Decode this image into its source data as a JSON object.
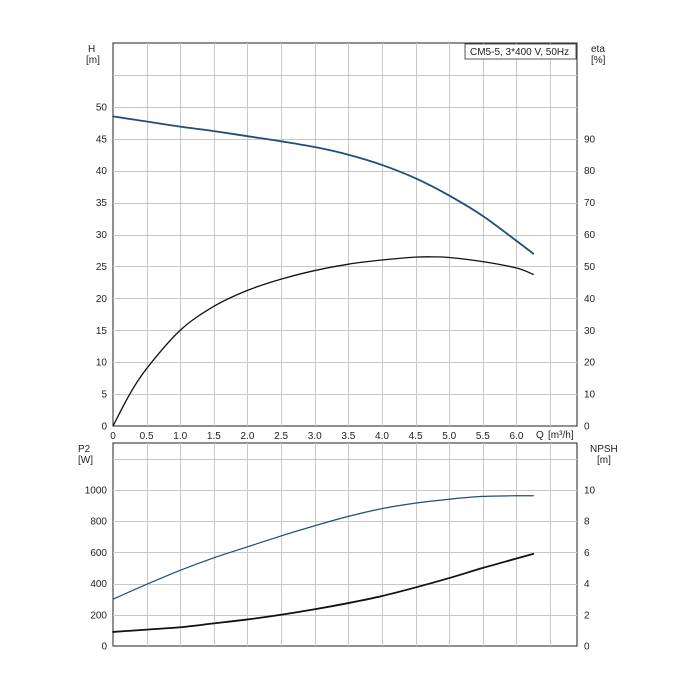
{
  "chart_data": [
    {
      "type": "line",
      "title": "",
      "legend": "CM5-5, 3*400 V, 50Hz",
      "legend_placement": "top-right",
      "grid": true,
      "xlabel": "Q [m³/h]",
      "x_label_text": "Q",
      "x_unit_text": "[m³/h]",
      "xlim": [
        0,
        6.9
      ],
      "x_ticks": [
        "0",
        "0.5",
        "1.0",
        "1.5",
        "2.0",
        "2.5",
        "3.0",
        "3.5",
        "4.0",
        "4.5",
        "5.0",
        "5.5",
        "6.0"
      ],
      "left_axis": {
        "label": "H",
        "unit": "[m]",
        "ylim": [
          0,
          60
        ],
        "ticks": [
          "0",
          "5",
          "10",
          "15",
          "20",
          "25",
          "30",
          "35",
          "40",
          "45",
          "50"
        ]
      },
      "right_axis": {
        "label": "eta",
        "unit": "[%]",
        "ylim": [
          0,
          120
        ],
        "ticks": [
          "0",
          "10",
          "20",
          "30",
          "40",
          "50",
          "60",
          "70",
          "80",
          "90"
        ]
      },
      "series": [
        {
          "axis": "left",
          "color": "#1f4e79",
          "x": [
            0,
            0.5,
            1.0,
            1.5,
            2.0,
            2.5,
            3.0,
            3.5,
            4.0,
            4.5,
            5.0,
            5.5,
            6.0,
            6.25
          ],
          "y": [
            48.5,
            47.7,
            46.9,
            46.2,
            45.4,
            44.6,
            43.7,
            42.5,
            40.9,
            38.8,
            36.1,
            32.9,
            29.0,
            27.0
          ]
        },
        {
          "axis": "right",
          "color": "#111111",
          "x": [
            0,
            0.25,
            0.5,
            1.0,
            1.5,
            2.0,
            2.5,
            3.0,
            3.5,
            4.0,
            4.5,
            4.75,
            5.0,
            5.5,
            6.0,
            6.25
          ],
          "y": [
            0,
            10,
            18,
            30,
            37.5,
            42.5,
            46,
            48.7,
            50.7,
            52,
            52.9,
            53,
            52.8,
            51.5,
            49.5,
            47.5
          ]
        }
      ]
    },
    {
      "type": "line",
      "title": "",
      "grid": true,
      "xlim": [
        0,
        6.9
      ],
      "left_axis": {
        "label": "P2",
        "unit": "[W]",
        "ylim": [
          0,
          1300
        ],
        "ticks": [
          "0",
          "200",
          "400",
          "600",
          "800",
          "1000"
        ]
      },
      "right_axis": {
        "label": "NPSH",
        "unit": "[m]",
        "ylim": [
          0,
          13
        ],
        "ticks": [
          "0",
          "2",
          "4",
          "6",
          "8",
          "10"
        ]
      },
      "series": [
        {
          "axis": "left",
          "color": "#1f4e79",
          "x": [
            0,
            0.5,
            1.0,
            1.5,
            2.0,
            2.5,
            3.0,
            3.5,
            4.0,
            4.5,
            5.0,
            5.5,
            6.0,
            6.25
          ],
          "y": [
            300,
            395,
            485,
            565,
            635,
            705,
            770,
            830,
            880,
            915,
            940,
            958,
            962,
            962
          ]
        },
        {
          "axis": "right",
          "color": "#111111",
          "x": [
            0,
            0.5,
            1.0,
            1.5,
            2.0,
            2.5,
            3.0,
            3.5,
            4.0,
            4.5,
            5.0,
            5.5,
            6.0,
            6.25
          ],
          "y": [
            0.9,
            1.05,
            1.2,
            1.45,
            1.7,
            2.0,
            2.35,
            2.75,
            3.2,
            3.75,
            4.35,
            5.0,
            5.6,
            5.9
          ]
        }
      ]
    }
  ]
}
